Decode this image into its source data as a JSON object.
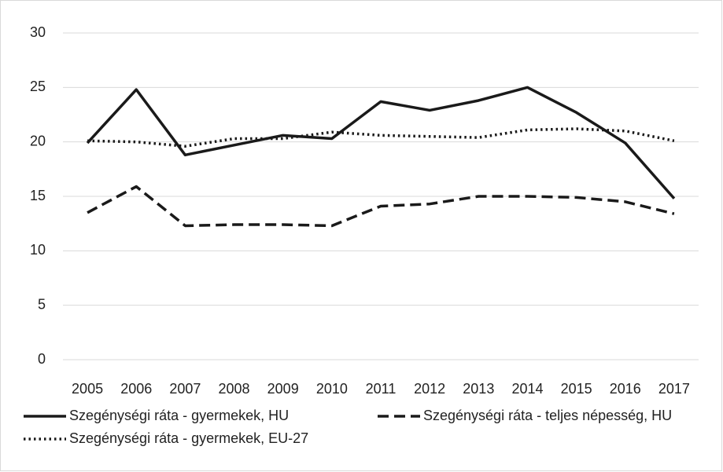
{
  "chart_data": {
    "type": "line",
    "categories": [
      "2005",
      "2006",
      "2007",
      "2008",
      "2009",
      "2010",
      "2011",
      "2012",
      "2013",
      "2014",
      "2015",
      "2016",
      "2017"
    ],
    "series": [
      {
        "name": "Szegénységi ráta - gyermekek, HU",
        "color": "#1a1a1a",
        "dash": "solid",
        "values": [
          19.9,
          24.8,
          18.8,
          19.7,
          20.6,
          20.3,
          23.7,
          22.9,
          23.8,
          25.0,
          22.7,
          19.9,
          14.8
        ]
      },
      {
        "name": "Szegénységi ráta - teljes népesség, HU",
        "color": "#1a1a1a",
        "dash": "dashed",
        "values": [
          13.5,
          15.9,
          12.3,
          12.4,
          12.4,
          12.3,
          14.1,
          14.3,
          15.0,
          15.0,
          14.9,
          14.5,
          13.4
        ]
      },
      {
        "name": "Szegénységi ráta - gyermekek, EU-27",
        "color": "#1a1a1a",
        "dash": "dotted",
        "values": [
          20.1,
          20.0,
          19.6,
          20.3,
          20.3,
          20.9,
          20.6,
          20.5,
          20.4,
          21.1,
          21.2,
          21.0,
          20.1
        ]
      }
    ],
    "ylim": [
      0,
      30
    ],
    "yticks": [
      0,
      5,
      10,
      15,
      20,
      25,
      30
    ],
    "grid": true,
    "legend": "bottom"
  }
}
